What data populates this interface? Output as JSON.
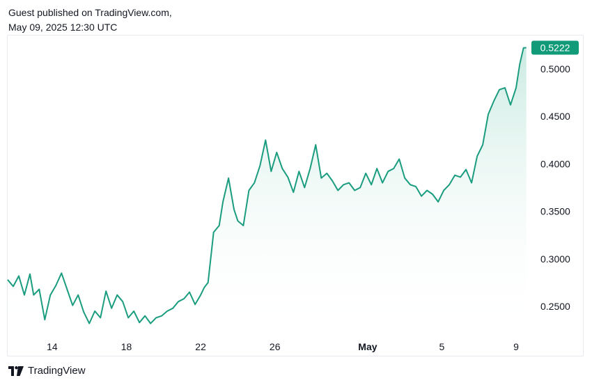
{
  "header": {
    "line1": "Guest published on TradingView.com,",
    "line2": "May 09, 2025 12:30 UTC"
  },
  "footer": {
    "brand": "TradingView"
  },
  "colors": {
    "line": "#1a9c7f",
    "fill_top": "#b9e4d8",
    "badge": "#119b79"
  },
  "chart_data": {
    "type": "area",
    "x_ticks": [
      {
        "label": "14",
        "day": 14,
        "bold": false
      },
      {
        "label": "18",
        "day": 18,
        "bold": false
      },
      {
        "label": "22",
        "day": 22,
        "bold": false
      },
      {
        "label": "26",
        "day": 26,
        "bold": false
      },
      {
        "label": "May",
        "day": 31,
        "bold": true
      },
      {
        "label": "5",
        "day": 35,
        "bold": false
      },
      {
        "label": "9",
        "day": 39,
        "bold": false
      }
    ],
    "y_ticks": [
      "0.5000",
      "0.4500",
      "0.4000",
      "0.3500",
      "0.3000",
      "0.2500"
    ],
    "ylim": [
      0.22,
      0.535
    ],
    "xlim": [
      11.6,
      39.6
    ],
    "last_price": "0.5222",
    "grid": false,
    "series": [
      {
        "x": [
          11.6,
          11.9,
          12.2,
          12.5,
          12.8,
          13.0,
          13.3,
          13.6,
          13.9,
          14.2,
          14.5,
          14.8,
          15.1,
          15.4,
          15.7,
          16.0,
          16.3,
          16.6,
          16.9,
          17.2,
          17.5,
          17.8,
          18.1,
          18.4,
          18.7,
          19.0,
          19.3,
          19.6,
          19.9,
          20.2,
          20.5,
          20.8,
          21.1,
          21.4,
          21.7,
          22.0,
          22.2,
          22.4,
          22.7,
          23.0,
          23.2,
          23.5,
          23.8,
          24.0,
          24.3,
          24.6,
          24.9,
          25.2,
          25.5,
          25.8,
          26.1,
          26.4,
          26.7,
          27.0,
          27.3,
          27.6,
          27.9,
          28.2,
          28.5,
          28.8,
          29.1,
          29.4,
          29.7,
          30.0,
          30.3,
          30.6,
          30.9,
          31.2,
          31.5,
          31.8,
          32.1,
          32.4,
          32.7,
          33.0,
          33.3,
          33.6,
          33.9,
          34.2,
          34.5,
          34.8,
          35.1,
          35.4,
          35.7,
          36.0,
          36.3,
          36.6,
          36.9,
          37.2,
          37.5,
          37.8,
          38.1,
          38.4,
          38.7,
          39.0,
          39.2,
          39.4,
          39.55
        ],
        "y": [
          0.278,
          0.271,
          0.282,
          0.262,
          0.284,
          0.262,
          0.268,
          0.236,
          0.262,
          0.272,
          0.285,
          0.268,
          0.251,
          0.262,
          0.244,
          0.232,
          0.245,
          0.238,
          0.266,
          0.248,
          0.262,
          0.255,
          0.238,
          0.245,
          0.233,
          0.24,
          0.232,
          0.238,
          0.24,
          0.245,
          0.248,
          0.255,
          0.258,
          0.265,
          0.252,
          0.262,
          0.27,
          0.275,
          0.328,
          0.335,
          0.36,
          0.385,
          0.352,
          0.34,
          0.335,
          0.372,
          0.38,
          0.398,
          0.425,
          0.392,
          0.412,
          0.395,
          0.386,
          0.37,
          0.392,
          0.375,
          0.395,
          0.42,
          0.385,
          0.39,
          0.382,
          0.372,
          0.378,
          0.38,
          0.372,
          0.375,
          0.39,
          0.378,
          0.395,
          0.38,
          0.392,
          0.395,
          0.405,
          0.385,
          0.378,
          0.376,
          0.366,
          0.372,
          0.368,
          0.36,
          0.372,
          0.378,
          0.388,
          0.386,
          0.394,
          0.38,
          0.408,
          0.42,
          0.452,
          0.466,
          0.478,
          0.48,
          0.462,
          0.48,
          0.505,
          0.522,
          0.5222
        ]
      }
    ]
  }
}
